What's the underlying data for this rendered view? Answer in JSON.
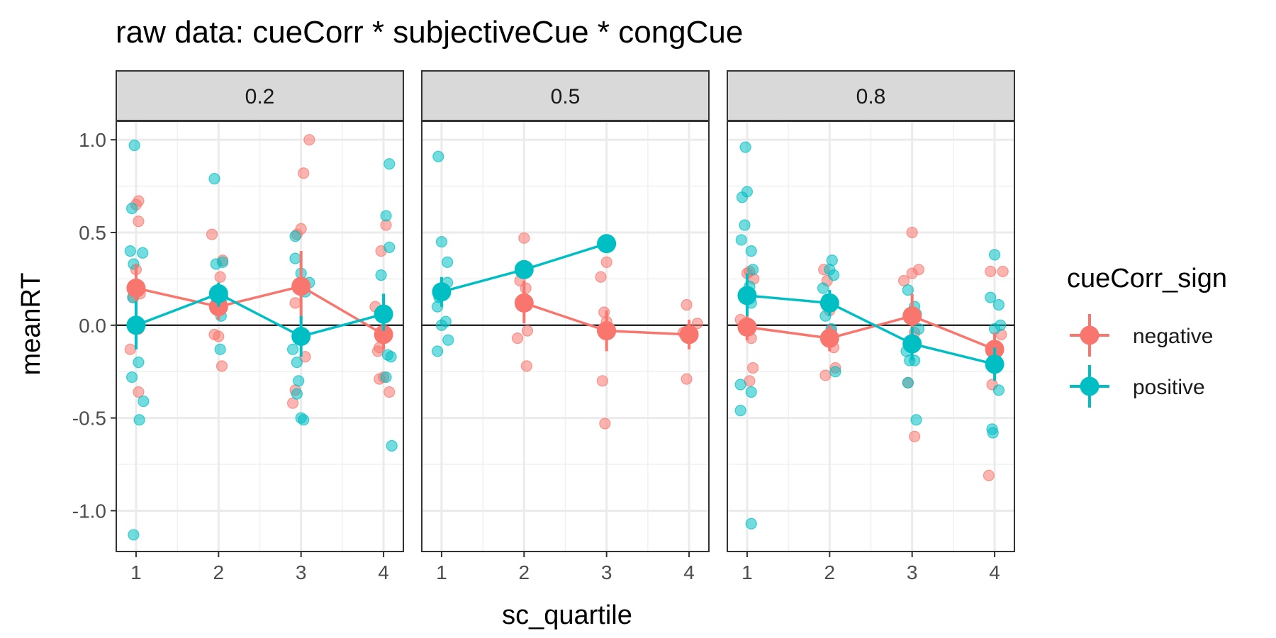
{
  "chart_data": {
    "type": "scatter",
    "title": "raw data: cueCorr * subjectiveCue * congCue",
    "xlabel": "sc_quartile",
    "ylabel": "meanRT",
    "xlim": [
      0.76,
      4.24
    ],
    "ylim": [
      -1.22,
      1.1
    ],
    "x_ticks": [
      1,
      2,
      3,
      4
    ],
    "x_tick_labels": [
      "1",
      "2",
      "3",
      "4"
    ],
    "y_ticks": [
      -1.0,
      -0.5,
      0.0,
      0.5,
      1.0
    ],
    "y_tick_labels": [
      "-1.0",
      "-0.5",
      "0.0",
      "0.5",
      "1.0"
    ],
    "grid": true,
    "reference_line_y": 0,
    "legend": {
      "title": "cueCorr_sign",
      "position": "right",
      "entries": [
        {
          "label": "negative",
          "color": "#F8766D"
        },
        {
          "label": "positive",
          "color": "#00BFC4"
        }
      ]
    },
    "panels": [
      {
        "label": "0.2",
        "series": [
          {
            "name": "negative",
            "color": "#F8766D",
            "means": [
              {
                "x": 1,
                "y": 0.2,
                "ylo": 0.08,
                "yhi": 0.33
              },
              {
                "x": 2,
                "y": 0.1,
                "ylo": 0.03,
                "yhi": 0.18
              },
              {
                "x": 3,
                "y": 0.21,
                "ylo": 0.02,
                "yhi": 0.4
              },
              {
                "x": 4,
                "y": -0.05,
                "ylo": -0.13,
                "yhi": 0.03
              }
            ],
            "points": [
              [
                0.93,
                -0.13
              ],
              [
                1.0,
                0.65
              ],
              [
                1.03,
                0.67
              ],
              [
                1.03,
                0.56
              ],
              [
                1.0,
                0.3
              ],
              [
                1.05,
                0.17
              ],
              [
                1.03,
                -0.02
              ],
              [
                1.03,
                -0.36
              ],
              [
                0.97,
                0.15
              ],
              [
                1.92,
                0.49
              ],
              [
                1.95,
                -0.05
              ],
              [
                2.0,
                -0.06
              ],
              [
                2.02,
                0.26
              ],
              [
                2.05,
                0.35
              ],
              [
                2.03,
                0.12
              ],
              [
                2.04,
                -0.22
              ],
              [
                2.93,
                0.12
              ],
              [
                2.95,
                0.49
              ],
              [
                3.0,
                0.52
              ],
              [
                3.03,
                0.82
              ],
              [
                3.1,
                1.0
              ],
              [
                2.93,
                -0.35
              ],
              [
                2.9,
                -0.42
              ],
              [
                3.05,
                -0.17
              ],
              [
                3.9,
                0.1
              ],
              [
                3.93,
                -0.14
              ],
              [
                3.95,
                -0.29
              ],
              [
                3.97,
                0.4
              ],
              [
                4.03,
                0.54
              ],
              [
                4.07,
                -0.36
              ],
              [
                3.95,
                -0.12
              ],
              [
                4.0,
                -0.28
              ]
            ]
          },
          {
            "name": "positive",
            "color": "#00BFC4",
            "means": [
              {
                "x": 1,
                "y": 0.0,
                "ylo": -0.13,
                "yhi": 0.13
              },
              {
                "x": 2,
                "y": 0.17,
                "ylo": 0.1,
                "yhi": 0.23
              },
              {
                "x": 3,
                "y": -0.06,
                "ylo": -0.17,
                "yhi": 0.05
              },
              {
                "x": 4,
                "y": 0.06,
                "ylo": -0.03,
                "yhi": 0.17
              }
            ],
            "points": [
              [
                0.98,
                0.97
              ],
              [
                0.95,
                0.63
              ],
              [
                0.93,
                0.4
              ],
              [
                0.97,
                0.33
              ],
              [
                1.08,
                0.39
              ],
              [
                0.96,
                0.15
              ],
              [
                1.03,
                -0.2
              ],
              [
                0.95,
                -0.28
              ],
              [
                1.09,
                -0.41
              ],
              [
                1.04,
                -0.51
              ],
              [
                0.97,
                -1.13
              ],
              [
                1.95,
                0.79
              ],
              [
                1.97,
                0.33
              ],
              [
                2.05,
                0.34
              ],
              [
                2.05,
                0.15
              ],
              [
                2.03,
                0.05
              ],
              [
                2.02,
                -0.13
              ],
              [
                2.93,
                0.48
              ],
              [
                2.93,
                0.36
              ],
              [
                3.0,
                0.28
              ],
              [
                3.1,
                0.23
              ],
              [
                3.05,
                0.18
              ],
              [
                2.9,
                -0.13
              ],
              [
                2.95,
                -0.2
              ],
              [
                2.97,
                -0.3
              ],
              [
                2.95,
                -0.37
              ],
              [
                3.0,
                -0.5
              ],
              [
                3.03,
                -0.51
              ],
              [
                4.07,
                0.87
              ],
              [
                4.03,
                0.59
              ],
              [
                4.07,
                0.42
              ],
              [
                3.97,
                0.27
              ],
              [
                4.05,
                -0.16
              ],
              [
                4.09,
                -0.17
              ],
              [
                4.03,
                -0.28
              ],
              [
                4.1,
                -0.65
              ]
            ]
          }
        ]
      },
      {
        "label": "0.5",
        "series": [
          {
            "name": "negative",
            "color": "#F8766D",
            "means": [
              {
                "x": 2,
                "y": 0.12,
                "ylo": 0.01,
                "yhi": 0.24
              },
              {
                "x": 3,
                "y": -0.03,
                "ylo": -0.14,
                "yhi": 0.08
              },
              {
                "x": 4,
                "y": -0.05,
                "ylo": -0.13,
                "yhi": 0.03
              }
            ],
            "points": [
              [
                2.0,
                0.47
              ],
              [
                1.95,
                0.24
              ],
              [
                2.02,
                0.2
              ],
              [
                1.92,
                -0.07
              ],
              [
                2.04,
                -0.03
              ],
              [
                2.03,
                -0.22
              ],
              [
                3.0,
                0.34
              ],
              [
                2.93,
                0.26
              ],
              [
                2.97,
                0.07
              ],
              [
                3.0,
                0.02
              ],
              [
                2.95,
                -0.03
              ],
              [
                2.95,
                -0.3
              ],
              [
                2.98,
                -0.53
              ],
              [
                3.97,
                0.11
              ],
              [
                4.1,
                0.01
              ],
              [
                3.93,
                -0.04
              ],
              [
                3.97,
                -0.29
              ]
            ]
          },
          {
            "name": "positive",
            "color": "#00BFC4",
            "means": [
              {
                "x": 1,
                "y": 0.18,
                "ylo": 0.1,
                "yhi": 0.26
              },
              {
                "x": 2,
                "y": 0.3,
                "ylo": 0.28,
                "yhi": 0.33
              },
              {
                "x": 3,
                "y": 0.44,
                "ylo": 0.44,
                "yhi": 0.44
              }
            ],
            "points": [
              [
                0.96,
                0.91
              ],
              [
                1.0,
                0.45
              ],
              [
                1.07,
                0.34
              ],
              [
                1.07,
                0.23
              ],
              [
                0.97,
                0.15
              ],
              [
                0.95,
                0.1
              ],
              [
                1.0,
                0.0
              ],
              [
                1.05,
                0.02
              ],
              [
                1.08,
                -0.08
              ],
              [
                0.95,
                -0.14
              ],
              [
                1.97,
                0.31
              ],
              [
                2.0,
                0.32
              ],
              [
                2.95,
                0.44
              ]
            ]
          }
        ]
      },
      {
        "label": "0.8",
        "series": [
          {
            "name": "negative",
            "color": "#F8766D",
            "means": [
              {
                "x": 1,
                "y": -0.01,
                "ylo": -0.08,
                "yhi": 0.06
              },
              {
                "x": 2,
                "y": -0.07,
                "ylo": -0.14,
                "yhi": 0.0
              },
              {
                "x": 3,
                "y": 0.05,
                "ylo": -0.06,
                "yhi": 0.17
              },
              {
                "x": 4,
                "y": -0.13,
                "ylo": -0.22,
                "yhi": -0.04
              }
            ],
            "points": [
              [
                0.92,
                0.03
              ],
              [
                1.03,
                0.29
              ],
              [
                1.08,
                0.25
              ],
              [
                1.05,
                -0.07
              ],
              [
                1.03,
                -0.3
              ],
              [
                1.07,
                -0.23
              ],
              [
                1.0,
                0.28
              ],
              [
                1.93,
                0.3
              ],
              [
                1.97,
                0.24
              ],
              [
                1.95,
                -0.27
              ],
              [
                2.05,
                -0.12
              ],
              [
                2.07,
                -0.23
              ],
              [
                2.0,
                0.08
              ],
              [
                2.02,
                -0.03
              ],
              [
                3.0,
                0.5
              ],
              [
                3.0,
                0.28
              ],
              [
                3.08,
                0.3
              ],
              [
                2.9,
                0.24
              ],
              [
                3.03,
                -0.04
              ],
              [
                2.95,
                -0.31
              ],
              [
                3.03,
                -0.6
              ],
              [
                3.95,
                0.29
              ],
              [
                4.1,
                0.29
              ],
              [
                4.08,
                -0.05
              ],
              [
                3.97,
                -0.32
              ],
              [
                3.93,
                -0.81
              ],
              [
                4.0,
                -0.12
              ]
            ]
          },
          {
            "name": "positive",
            "color": "#00BFC4",
            "means": [
              {
                "x": 1,
                "y": 0.16,
                "ylo": 0.05,
                "yhi": 0.28
              },
              {
                "x": 2,
                "y": 0.12,
                "ylo": 0.05,
                "yhi": 0.19
              },
              {
                "x": 3,
                "y": -0.1,
                "ylo": -0.19,
                "yhi": -0.01
              },
              {
                "x": 4,
                "y": -0.21,
                "ylo": -0.3,
                "yhi": -0.12
              }
            ],
            "points": [
              [
                0.98,
                0.96
              ],
              [
                1.0,
                0.72
              ],
              [
                0.94,
                0.69
              ],
              [
                0.97,
                0.54
              ],
              [
                1.05,
                0.4
              ],
              [
                0.93,
                0.46
              ],
              [
                1.07,
                0.3
              ],
              [
                1.03,
                0.21
              ],
              [
                1.05,
                0.12
              ],
              [
                0.92,
                -0.32
              ],
              [
                1.05,
                -0.36
              ],
              [
                0.92,
                -0.46
              ],
              [
                1.05,
                -1.07
              ],
              [
                2.03,
                0.35
              ],
              [
                2.0,
                0.3
              ],
              [
                2.05,
                0.27
              ],
              [
                1.92,
                0.2
              ],
              [
                1.97,
                0.14
              ],
              [
                1.95,
                0.05
              ],
              [
                2.02,
                -0.02
              ],
              [
                2.07,
                -0.25
              ],
              [
                2.95,
                0.19
              ],
              [
                3.03,
                0.1
              ],
              [
                3.05,
                0.06
              ],
              [
                3.08,
                -0.02
              ],
              [
                2.93,
                -0.14
              ],
              [
                2.97,
                -0.19
              ],
              [
                3.03,
                -0.19
              ],
              [
                2.95,
                -0.31
              ],
              [
                3.05,
                -0.51
              ],
              [
                4.0,
                0.38
              ],
              [
                3.95,
                0.15
              ],
              [
                4.05,
                0.11
              ],
              [
                4.07,
                0.0
              ],
              [
                4.0,
                -0.02
              ],
              [
                4.05,
                -0.35
              ],
              [
                3.97,
                -0.56
              ],
              [
                3.98,
                -0.58
              ]
            ]
          }
        ]
      }
    ]
  }
}
